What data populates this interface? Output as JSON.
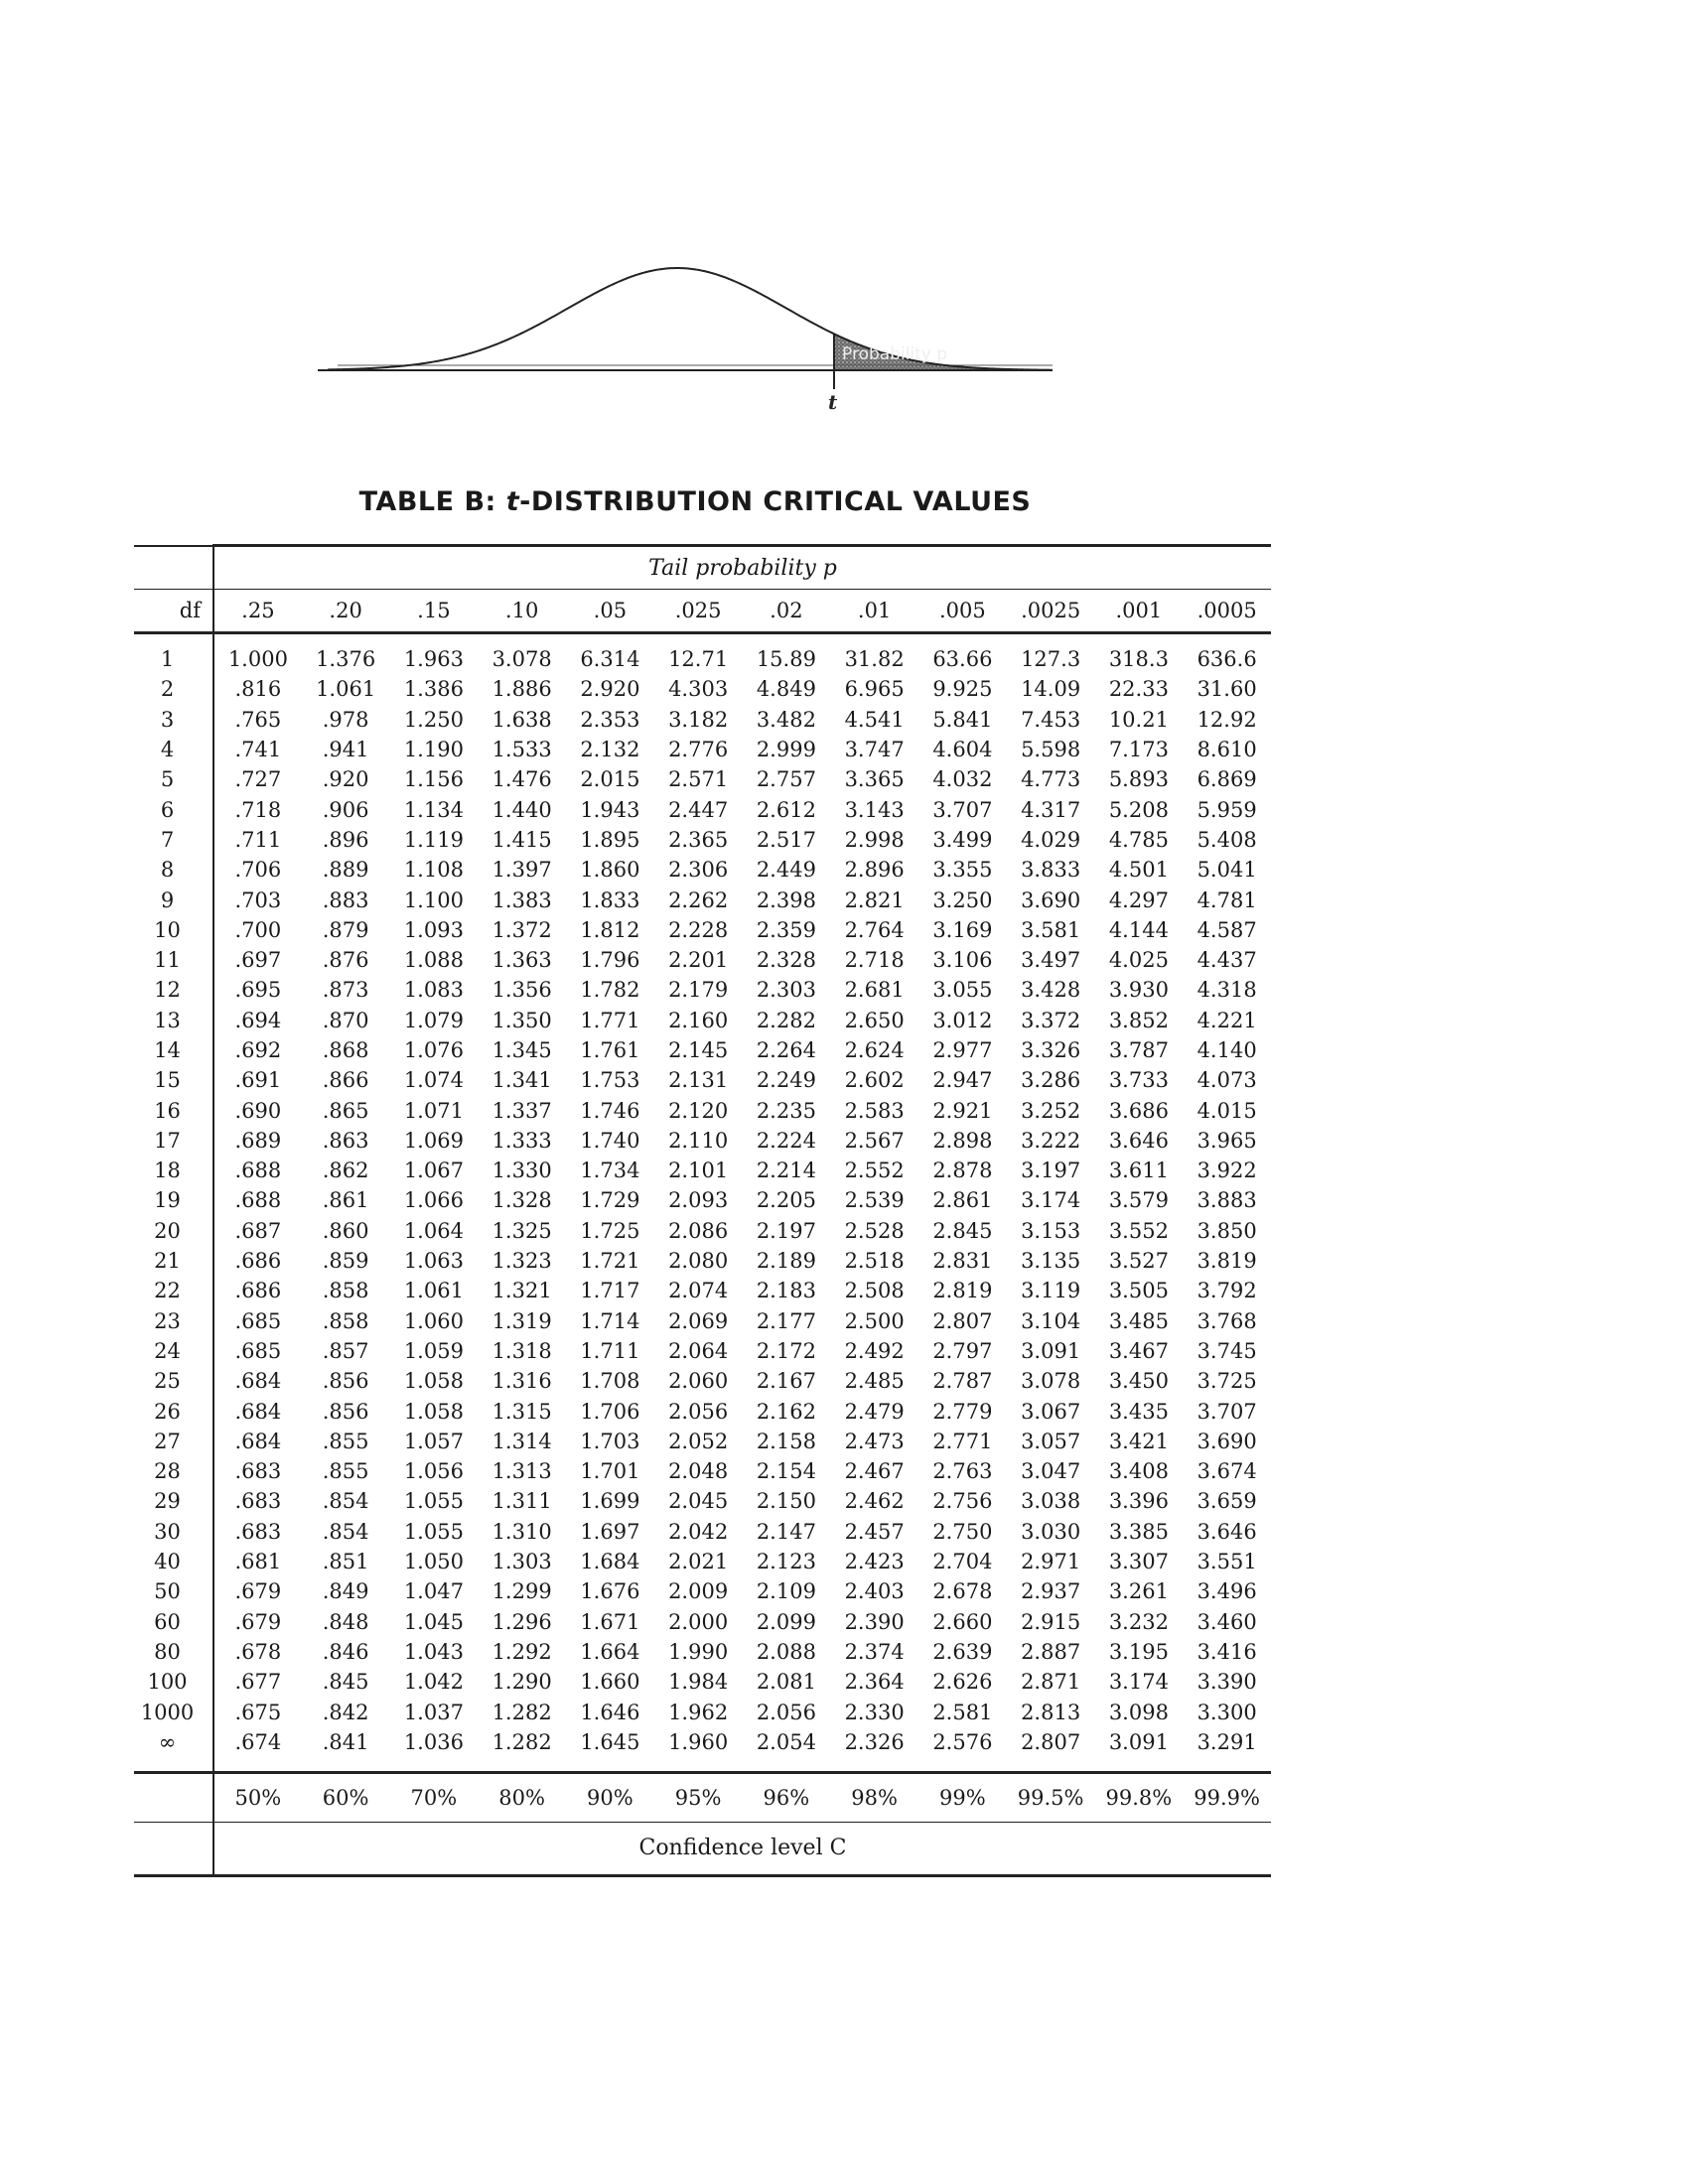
{
  "figure": {
    "shaded_label": "Probability p",
    "t_label": "t"
  },
  "title": {
    "prefix": "TABLE B: ",
    "italic": "t",
    "suffix": "-DISTRIBUTION CRITICAL VALUES"
  },
  "table": {
    "tail_header": "Tail probability p",
    "df_header": "df",
    "tail_probs": [
      ".25",
      ".20",
      ".15",
      ".10",
      ".05",
      ".025",
      ".02",
      ".01",
      ".005",
      ".0025",
      ".001",
      ".0005"
    ],
    "rows": [
      {
        "df": "1",
        "values": [
          "1.000",
          "1.376",
          "1.963",
          "3.078",
          "6.314",
          "12.71",
          "15.89",
          "31.82",
          "63.66",
          "127.3",
          "318.3",
          "636.6"
        ]
      },
      {
        "df": "2",
        "values": [
          ".816",
          "1.061",
          "1.386",
          "1.886",
          "2.920",
          "4.303",
          "4.849",
          "6.965",
          "9.925",
          "14.09",
          "22.33",
          "31.60"
        ]
      },
      {
        "df": "3",
        "values": [
          ".765",
          ".978",
          "1.250",
          "1.638",
          "2.353",
          "3.182",
          "3.482",
          "4.541",
          "5.841",
          "7.453",
          "10.21",
          "12.92"
        ]
      },
      {
        "df": "4",
        "values": [
          ".741",
          ".941",
          "1.190",
          "1.533",
          "2.132",
          "2.776",
          "2.999",
          "3.747",
          "4.604",
          "5.598",
          "7.173",
          "8.610"
        ]
      },
      {
        "df": "5",
        "values": [
          ".727",
          ".920",
          "1.156",
          "1.476",
          "2.015",
          "2.571",
          "2.757",
          "3.365",
          "4.032",
          "4.773",
          "5.893",
          "6.869"
        ]
      },
      {
        "df": "6",
        "values": [
          ".718",
          ".906",
          "1.134",
          "1.440",
          "1.943",
          "2.447",
          "2.612",
          "3.143",
          "3.707",
          "4.317",
          "5.208",
          "5.959"
        ]
      },
      {
        "df": "7",
        "values": [
          ".711",
          ".896",
          "1.119",
          "1.415",
          "1.895",
          "2.365",
          "2.517",
          "2.998",
          "3.499",
          "4.029",
          "4.785",
          "5.408"
        ]
      },
      {
        "df": "8",
        "values": [
          ".706",
          ".889",
          "1.108",
          "1.397",
          "1.860",
          "2.306",
          "2.449",
          "2.896",
          "3.355",
          "3.833",
          "4.501",
          "5.041"
        ]
      },
      {
        "df": "9",
        "values": [
          ".703",
          ".883",
          "1.100",
          "1.383",
          "1.833",
          "2.262",
          "2.398",
          "2.821",
          "3.250",
          "3.690",
          "4.297",
          "4.781"
        ]
      },
      {
        "df": "10",
        "values": [
          ".700",
          ".879",
          "1.093",
          "1.372",
          "1.812",
          "2.228",
          "2.359",
          "2.764",
          "3.169",
          "3.581",
          "4.144",
          "4.587"
        ]
      },
      {
        "df": "11",
        "values": [
          ".697",
          ".876",
          "1.088",
          "1.363",
          "1.796",
          "2.201",
          "2.328",
          "2.718",
          "3.106",
          "3.497",
          "4.025",
          "4.437"
        ]
      },
      {
        "df": "12",
        "values": [
          ".695",
          ".873",
          "1.083",
          "1.356",
          "1.782",
          "2.179",
          "2.303",
          "2.681",
          "3.055",
          "3.428",
          "3.930",
          "4.318"
        ]
      },
      {
        "df": "13",
        "values": [
          ".694",
          ".870",
          "1.079",
          "1.350",
          "1.771",
          "2.160",
          "2.282",
          "2.650",
          "3.012",
          "3.372",
          "3.852",
          "4.221"
        ]
      },
      {
        "df": "14",
        "values": [
          ".692",
          ".868",
          "1.076",
          "1.345",
          "1.761",
          "2.145",
          "2.264",
          "2.624",
          "2.977",
          "3.326",
          "3.787",
          "4.140"
        ]
      },
      {
        "df": "15",
        "values": [
          ".691",
          ".866",
          "1.074",
          "1.341",
          "1.753",
          "2.131",
          "2.249",
          "2.602",
          "2.947",
          "3.286",
          "3.733",
          "4.073"
        ]
      },
      {
        "df": "16",
        "values": [
          ".690",
          ".865",
          "1.071",
          "1.337",
          "1.746",
          "2.120",
          "2.235",
          "2.583",
          "2.921",
          "3.252",
          "3.686",
          "4.015"
        ]
      },
      {
        "df": "17",
        "values": [
          ".689",
          ".863",
          "1.069",
          "1.333",
          "1.740",
          "2.110",
          "2.224",
          "2.567",
          "2.898",
          "3.222",
          "3.646",
          "3.965"
        ]
      },
      {
        "df": "18",
        "values": [
          ".688",
          ".862",
          "1.067",
          "1.330",
          "1.734",
          "2.101",
          "2.214",
          "2.552",
          "2.878",
          "3.197",
          "3.611",
          "3.922"
        ]
      },
      {
        "df": "19",
        "values": [
          ".688",
          ".861",
          "1.066",
          "1.328",
          "1.729",
          "2.093",
          "2.205",
          "2.539",
          "2.861",
          "3.174",
          "3.579",
          "3.883"
        ]
      },
      {
        "df": "20",
        "values": [
          ".687",
          ".860",
          "1.064",
          "1.325",
          "1.725",
          "2.086",
          "2.197",
          "2.528",
          "2.845",
          "3.153",
          "3.552",
          "3.850"
        ]
      },
      {
        "df": "21",
        "values": [
          ".686",
          ".859",
          "1.063",
          "1.323",
          "1.721",
          "2.080",
          "2.189",
          "2.518",
          "2.831",
          "3.135",
          "3.527",
          "3.819"
        ]
      },
      {
        "df": "22",
        "values": [
          ".686",
          ".858",
          "1.061",
          "1.321",
          "1.717",
          "2.074",
          "2.183",
          "2.508",
          "2.819",
          "3.119",
          "3.505",
          "3.792"
        ]
      },
      {
        "df": "23",
        "values": [
          ".685",
          ".858",
          "1.060",
          "1.319",
          "1.714",
          "2.069",
          "2.177",
          "2.500",
          "2.807",
          "3.104",
          "3.485",
          "3.768"
        ]
      },
      {
        "df": "24",
        "values": [
          ".685",
          ".857",
          "1.059",
          "1.318",
          "1.711",
          "2.064",
          "2.172",
          "2.492",
          "2.797",
          "3.091",
          "3.467",
          "3.745"
        ]
      },
      {
        "df": "25",
        "values": [
          ".684",
          ".856",
          "1.058",
          "1.316",
          "1.708",
          "2.060",
          "2.167",
          "2.485",
          "2.787",
          "3.078",
          "3.450",
          "3.725"
        ]
      },
      {
        "df": "26",
        "values": [
          ".684",
          ".856",
          "1.058",
          "1.315",
          "1.706",
          "2.056",
          "2.162",
          "2.479",
          "2.779",
          "3.067",
          "3.435",
          "3.707"
        ]
      },
      {
        "df": "27",
        "values": [
          ".684",
          ".855",
          "1.057",
          "1.314",
          "1.703",
          "2.052",
          "2.158",
          "2.473",
          "2.771",
          "3.057",
          "3.421",
          "3.690"
        ]
      },
      {
        "df": "28",
        "values": [
          ".683",
          ".855",
          "1.056",
          "1.313",
          "1.701",
          "2.048",
          "2.154",
          "2.467",
          "2.763",
          "3.047",
          "3.408",
          "3.674"
        ]
      },
      {
        "df": "29",
        "values": [
          ".683",
          ".854",
          "1.055",
          "1.311",
          "1.699",
          "2.045",
          "2.150",
          "2.462",
          "2.756",
          "3.038",
          "3.396",
          "3.659"
        ]
      },
      {
        "df": "30",
        "values": [
          ".683",
          ".854",
          "1.055",
          "1.310",
          "1.697",
          "2.042",
          "2.147",
          "2.457",
          "2.750",
          "3.030",
          "3.385",
          "3.646"
        ]
      },
      {
        "df": "40",
        "values": [
          ".681",
          ".851",
          "1.050",
          "1.303",
          "1.684",
          "2.021",
          "2.123",
          "2.423",
          "2.704",
          "2.971",
          "3.307",
          "3.551"
        ]
      },
      {
        "df": "50",
        "values": [
          ".679",
          ".849",
          "1.047",
          "1.299",
          "1.676",
          "2.009",
          "2.109",
          "2.403",
          "2.678",
          "2.937",
          "3.261",
          "3.496"
        ]
      },
      {
        "df": "60",
        "values": [
          ".679",
          ".848",
          "1.045",
          "1.296",
          "1.671",
          "2.000",
          "2.099",
          "2.390",
          "2.660",
          "2.915",
          "3.232",
          "3.460"
        ]
      },
      {
        "df": "80",
        "values": [
          ".678",
          ".846",
          "1.043",
          "1.292",
          "1.664",
          "1.990",
          "2.088",
          "2.374",
          "2.639",
          "2.887",
          "3.195",
          "3.416"
        ]
      },
      {
        "df": "100",
        "values": [
          ".677",
          ".845",
          "1.042",
          "1.290",
          "1.660",
          "1.984",
          "2.081",
          "2.364",
          "2.626",
          "2.871",
          "3.174",
          "3.390"
        ]
      },
      {
        "df": "1000",
        "values": [
          ".675",
          ".842",
          "1.037",
          "1.282",
          "1.646",
          "1.962",
          "2.056",
          "2.330",
          "2.581",
          "2.813",
          "3.098",
          "3.300"
        ]
      },
      {
        "df": "∞",
        "values": [
          ".674",
          ".841",
          "1.036",
          "1.282",
          "1.645",
          "1.960",
          "2.054",
          "2.326",
          "2.576",
          "2.807",
          "3.091",
          "3.291"
        ]
      }
    ],
    "confidence_levels": [
      "50%",
      "60%",
      "70%",
      "80%",
      "90%",
      "95%",
      "96%",
      "98%",
      "99%",
      "99.5%",
      "99.8%",
      "99.9%"
    ],
    "confidence_label": "Confidence level C"
  }
}
